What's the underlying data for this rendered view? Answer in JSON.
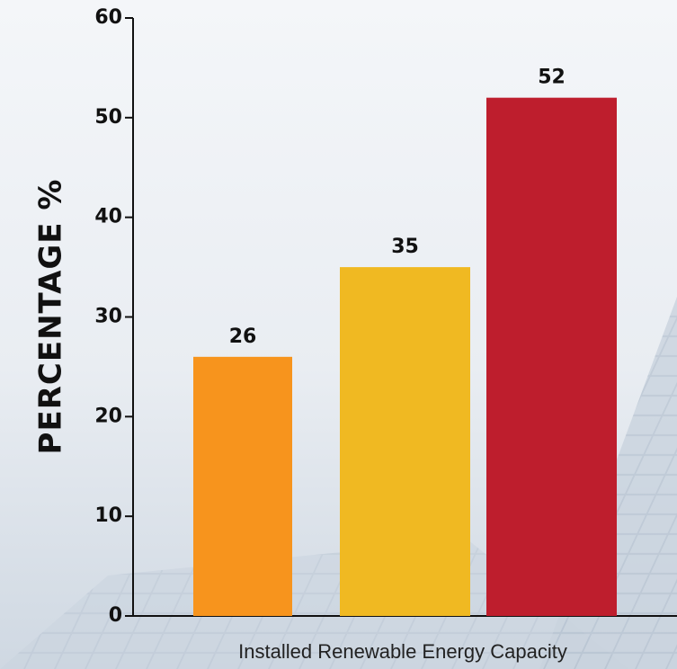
{
  "chart_data": {
    "type": "bar",
    "y_label": "PERCENTAGE %",
    "x_label": "Installed Renewable Energy Capacity",
    "categories": [
      null,
      null,
      null
    ],
    "values": [
      26,
      35,
      52
    ],
    "colors": [
      "#f7941d",
      "#f0b922",
      "#be1e2d"
    ],
    "ylim": [
      0,
      60
    ],
    "yticks": [
      0,
      10,
      20,
      30,
      40,
      50,
      60
    ]
  }
}
